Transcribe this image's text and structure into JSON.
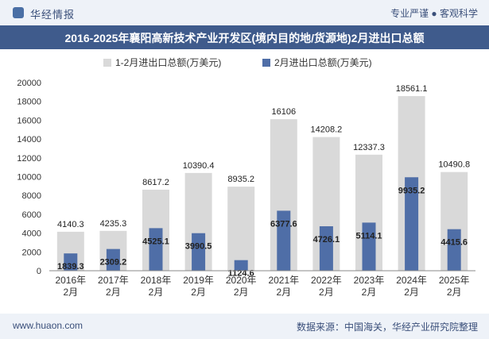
{
  "header": {
    "brand": "华经情报",
    "slogan": "专业严谨 ● 客观科学"
  },
  "title": "2016-2025年襄阳高新技术产业开发区(境内目的地/货源地)2月进出口总额",
  "footer": {
    "url": "www.huaon.com",
    "source": "数据来源：中国海关，华经产业研究院整理"
  },
  "colors": {
    "total": "#d9d9d9",
    "feb": "#4f6ea7",
    "title_bg": "#3f5b8c",
    "band_bg": "#eef2f8"
  },
  "chart_data": {
    "type": "bar",
    "categories": [
      "2016年\n2月",
      "2017年\n2月",
      "2018年\n2月",
      "2019年\n2月",
      "2020年\n2月",
      "2021年\n2月",
      "2022年\n2月",
      "2023年\n2月",
      "2024年\n2月",
      "2025年\n2月"
    ],
    "series": [
      {
        "name": "1-2月进出口总额(万美元)",
        "values": [
          4140.3,
          4235.3,
          8617.2,
          10390.4,
          8935.2,
          16106,
          14208.2,
          12337.3,
          18561.1,
          10490.8
        ],
        "labels": [
          "4140.3",
          "4235.3",
          "8617.2",
          "10390.4",
          "8935.2",
          "16106",
          "14208.2",
          "12337.3",
          "18561.1",
          "10490.8"
        ]
      },
      {
        "name": "2月进出口总额(万美元)",
        "values": [
          1839.3,
          2309.2,
          4525.1,
          3990.5,
          1124.6,
          6377.6,
          4726.1,
          5114.1,
          9935.2,
          4415.6
        ],
        "labels": [
          "1839.3",
          "2309.2",
          "4525.1",
          "3990.5",
          "1124.6",
          "6377.6",
          "4726.1",
          "5114.1",
          "9935.2",
          "4415.6"
        ]
      }
    ],
    "ylim": [
      0,
      20000
    ],
    "yticks": [
      0,
      2000,
      4000,
      6000,
      8000,
      10000,
      12000,
      14000,
      16000,
      18000,
      20000
    ],
    "grid": false,
    "legend_position": "top-center"
  }
}
